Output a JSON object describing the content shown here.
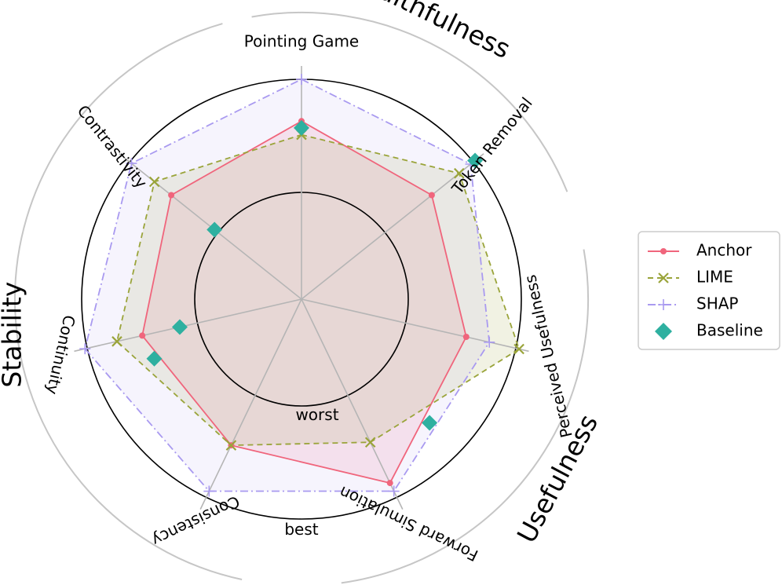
{
  "chart_data": {
    "type": "radar",
    "axes": [
      "Pointing Game",
      "Token Removal",
      "Perceived Usefulness",
      "Forward Simulation",
      "Consistency",
      "Continuity",
      "Contrastivity"
    ],
    "scale": {
      "inner_label": "worst",
      "outer_label": "best"
    },
    "groups": [
      {
        "label": "Faithfulness",
        "axes": [
          "Pointing Game",
          "Token Removal"
        ]
      },
      {
        "label": "Usefulness",
        "axes": [
          "Perceived Usefulness",
          "Forward Simulation"
        ]
      },
      {
        "label": "Stability",
        "axes": [
          "Consistency",
          "Continuity",
          "Contrastivity"
        ]
      }
    ],
    "series": [
      {
        "name": "Anchor",
        "color": "#f0657c",
        "values": [
          0.63,
          0.53,
          0.55,
          0.86,
          0.49,
          0.5,
          0.53
        ]
      },
      {
        "name": "LIME",
        "color": "#9aa43a",
        "values": [
          0.51,
          0.84,
          1.03,
          0.46,
          0.49,
          0.73,
          0.72
        ]
      },
      {
        "name": "SHAP",
        "color": "#a99af0",
        "values": [
          1.0,
          0.97,
          0.76,
          0.94,
          0.94,
          1.02,
          0.98
        ]
      },
      {
        "name": "Baseline",
        "color": "#2eb0a0",
        "values": [
          0.57,
          1.02,
          null,
          null,
          null,
          0.16,
          0.04
        ]
      }
    ],
    "baseline_extra_points": [
      {
        "angle_deg": 202,
        "value": 0.46
      },
      {
        "angle_deg": -44,
        "value": 0.63
      }
    ],
    "legend_position": "right"
  }
}
